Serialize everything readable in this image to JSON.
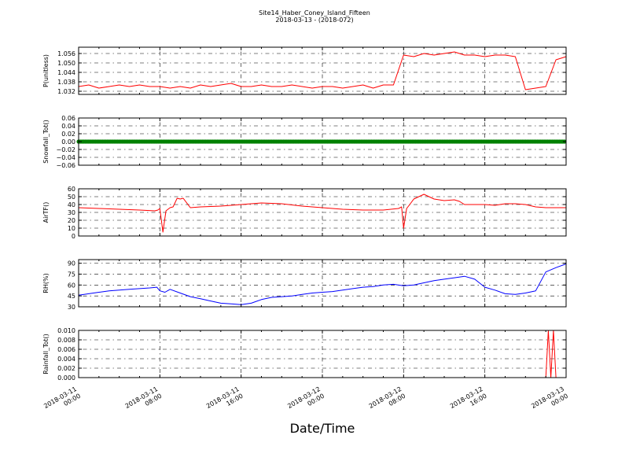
{
  "figure": {
    "title_line1": "Site14_Haber_Coney_Island_Fifteen",
    "title_line2": "2018-03-13 - (2018-072)",
    "xlabel": "Date/Time"
  },
  "chart_data": [
    {
      "type": "line",
      "ylabel": "P(unitless)",
      "color": "#ff0000",
      "ylim": [
        1.03,
        1.06
      ],
      "yticks": [
        1.032,
        1.038,
        1.044,
        1.05,
        1.056
      ],
      "ytick_labels": [
        "1.032",
        "1.038",
        "1.044",
        "1.050",
        "1.056"
      ],
      "xlim": [
        "2018-03-11 00:00",
        "2018-03-13 00:00"
      ],
      "x_hours": [
        0,
        1,
        2,
        3,
        4,
        5,
        6,
        7,
        8,
        9,
        10,
        11,
        12,
        13,
        14,
        15,
        16,
        17,
        18,
        19,
        20,
        21,
        22,
        23,
        24,
        25,
        26,
        27,
        28,
        29,
        30,
        31,
        32,
        33,
        34,
        35,
        36,
        37,
        38,
        39,
        40,
        41,
        42,
        43,
        44,
        45,
        46,
        47,
        48
      ],
      "values": [
        1.035,
        1.036,
        1.034,
        1.035,
        1.036,
        1.035,
        1.036,
        1.035,
        1.035,
        1.034,
        1.035,
        1.034,
        1.036,
        1.035,
        1.036,
        1.037,
        1.035,
        1.035,
        1.036,
        1.035,
        1.035,
        1.036,
        1.035,
        1.034,
        1.035,
        1.035,
        1.034,
        1.035,
        1.036,
        1.034,
        1.036,
        1.036,
        1.055,
        1.054,
        1.056,
        1.055,
        1.056,
        1.057,
        1.055,
        1.055,
        1.054,
        1.055,
        1.055,
        1.054,
        1.033,
        1.034,
        1.035,
        1.052,
        1.054
      ],
      "grid": true
    },
    {
      "type": "scatter",
      "ylabel": "Snowfall_Tot()",
      "color": "#008000",
      "ylim": [
        -0.06,
        0.06
      ],
      "yticks": [
        -0.06,
        -0.04,
        -0.02,
        0.0,
        0.02,
        0.04,
        0.06
      ],
      "ytick_labels": [
        "−0.06",
        "−0.04",
        "−0.02",
        "0.00",
        "0.02",
        "0.04",
        "0.06"
      ],
      "xlim": [
        "2018-03-11 00:00",
        "2018-03-13 00:00"
      ],
      "constant_value": 0.0,
      "grid": true
    },
    {
      "type": "line",
      "ylabel": "AirTF()",
      "color": "#ff0000",
      "ylim": [
        0,
        60
      ],
      "yticks": [
        0,
        10,
        20,
        30,
        40,
        50,
        60
      ],
      "ytick_labels": [
        "0",
        "10",
        "20",
        "30",
        "40",
        "50",
        "60"
      ],
      "xlim": [
        "2018-03-11 00:00",
        "2018-03-13 00:00"
      ],
      "x_hours": [
        0,
        2,
        4,
        6,
        7.5,
        7.8,
        8.0,
        8.3,
        8.6,
        9.0,
        9.3,
        9.7,
        10.0,
        10.3,
        11,
        12,
        14,
        16,
        18,
        20,
        22,
        24,
        26,
        28,
        30,
        31.5,
        31.8,
        32.0,
        32.3,
        32.6,
        33.0,
        33.5,
        34,
        35,
        36,
        37,
        37.5,
        38,
        39,
        40,
        41,
        42,
        43,
        44,
        45,
        46,
        47,
        48
      ],
      "values": [
        36,
        35,
        34,
        33,
        32,
        33,
        35,
        5,
        32,
        36,
        37,
        48,
        47,
        48,
        36,
        37,
        38,
        40,
        42,
        41,
        38,
        36,
        34,
        33,
        33,
        35,
        37,
        10,
        35,
        40,
        47,
        50,
        53,
        47,
        45,
        46,
        44,
        40,
        40,
        40,
        39,
        41,
        41,
        40,
        37,
        36,
        36,
        36
      ],
      "grid": true
    },
    {
      "type": "line",
      "ylabel": "RH(%)",
      "color": "#0000ff",
      "ylim": [
        30,
        95
      ],
      "yticks": [
        30,
        45,
        60,
        75,
        90
      ],
      "ytick_labels": [
        "30",
        "45",
        "60",
        "75",
        "90"
      ],
      "xlim": [
        "2018-03-11 00:00",
        "2018-03-13 00:00"
      ],
      "x_hours": [
        0,
        1,
        2,
        3,
        4,
        5,
        6,
        7,
        7.7,
        8,
        8.5,
        9,
        10,
        11,
        12,
        13,
        14,
        15,
        16,
        17,
        18,
        19,
        20,
        21,
        22,
        23,
        24,
        25,
        26,
        27,
        28,
        29,
        30,
        31,
        32,
        33,
        34,
        35,
        36,
        37,
        38,
        39,
        40,
        41,
        42,
        43,
        44,
        45,
        46,
        47,
        48
      ],
      "values": [
        46,
        48,
        50,
        52,
        53,
        54,
        55,
        56,
        57,
        52,
        50,
        54,
        49,
        44,
        41,
        38,
        35,
        34,
        33,
        35,
        40,
        43,
        44,
        45,
        47,
        49,
        50,
        51,
        53,
        55,
        57,
        58,
        60,
        61,
        59,
        60,
        63,
        66,
        68,
        70,
        72,
        68,
        57,
        53,
        48,
        47,
        49,
        52,
        78,
        84,
        89
      ],
      "grid": true
    },
    {
      "type": "line",
      "ylabel": "Rainfall_Tot()",
      "color": "#ff0000",
      "ylim": [
        0.0,
        0.01
      ],
      "yticks": [
        0.0,
        0.002,
        0.004,
        0.006,
        0.008,
        0.01
      ],
      "ytick_labels": [
        "0.000",
        "0.002",
        "0.004",
        "0.006",
        "0.008",
        "0.010"
      ],
      "xlim": [
        "2018-03-11 00:00",
        "2018-03-13 00:00"
      ],
      "x_hours": [
        0,
        46.0,
        46.25,
        46.5,
        46.75,
        47.0,
        47.25,
        48
      ],
      "values": [
        0.0,
        0.0,
        0.01,
        0.0,
        0.01,
        0.0,
        0.0,
        0.0
      ],
      "grid": true
    }
  ],
  "xticks": {
    "hours": [
      0,
      8,
      16,
      24,
      32,
      40,
      48
    ],
    "labels": [
      [
        "2018-03-11",
        "00:00"
      ],
      [
        "2018-03-11",
        "08:00"
      ],
      [
        "2018-03-11",
        "16:00"
      ],
      [
        "2018-03-12",
        "00:00"
      ],
      [
        "2018-03-12",
        "08:00"
      ],
      [
        "2018-03-12",
        "16:00"
      ],
      [
        "2018-03-13",
        "00:00"
      ]
    ]
  }
}
